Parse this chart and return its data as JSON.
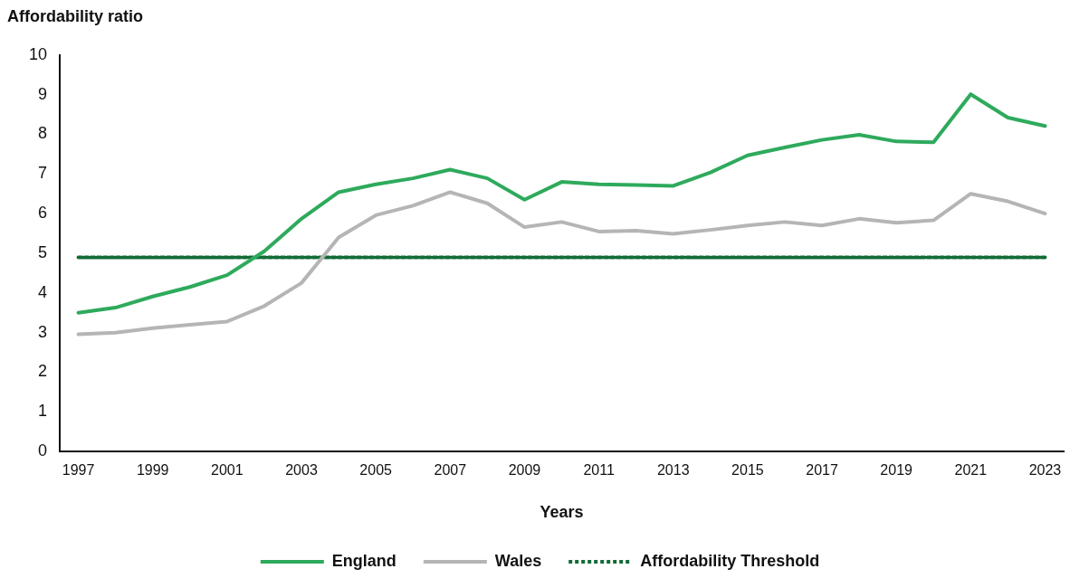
{
  "chart_data": {
    "type": "line",
    "ylabel": "Affordability ratio",
    "xlabel": "Years",
    "categories": [
      "1997",
      null,
      "1999",
      null,
      "2001",
      null,
      "2003",
      null,
      "2005",
      null,
      "2007",
      null,
      "2009",
      null,
      "2011",
      null,
      "2013",
      null,
      "2015",
      null,
      "2017",
      null,
      "2019",
      null,
      "2021",
      null,
      "2023"
    ],
    "series": [
      {
        "name": "England",
        "color": "#2eaa5c",
        "values": [
          3.5,
          3.63,
          3.91,
          4.15,
          4.45,
          5.05,
          5.87,
          6.54,
          6.74,
          6.89,
          7.11,
          6.89,
          6.35,
          6.8,
          6.74,
          6.72,
          6.7,
          7.04,
          7.47,
          7.67,
          7.86,
          7.99,
          7.82,
          7.8,
          9.01,
          8.42,
          8.21
        ]
      },
      {
        "name": "Wales",
        "color": "#b5b5b5",
        "values": [
          2.96,
          3.0,
          3.11,
          3.2,
          3.28,
          3.67,
          4.25,
          5.4,
          5.96,
          6.2,
          6.54,
          6.26,
          5.66,
          5.79,
          5.55,
          5.57,
          5.49,
          5.59,
          5.7,
          5.79,
          5.7,
          5.87,
          5.77,
          5.83,
          6.5,
          6.31,
          6.0
        ]
      },
      {
        "name": "Affordability Threshold",
        "color": "#136b36",
        "line_style": "dotted",
        "values": [
          4.9,
          4.9,
          4.9,
          4.9,
          4.9,
          4.9,
          4.9,
          4.9,
          4.9,
          4.9,
          4.9,
          4.9,
          4.9,
          4.9,
          4.9,
          4.9,
          4.9,
          4.9,
          4.9,
          4.9,
          4.9,
          4.9,
          4.9,
          4.9,
          4.9,
          4.9,
          4.9
        ]
      }
    ],
    "ylim": [
      0,
      10
    ],
    "yticks": [
      0,
      1,
      2,
      3,
      4,
      5,
      6,
      7,
      8,
      9,
      10
    ],
    "grid": false,
    "legend": "bottom",
    "marker": "none",
    "line_style": "solid"
  }
}
